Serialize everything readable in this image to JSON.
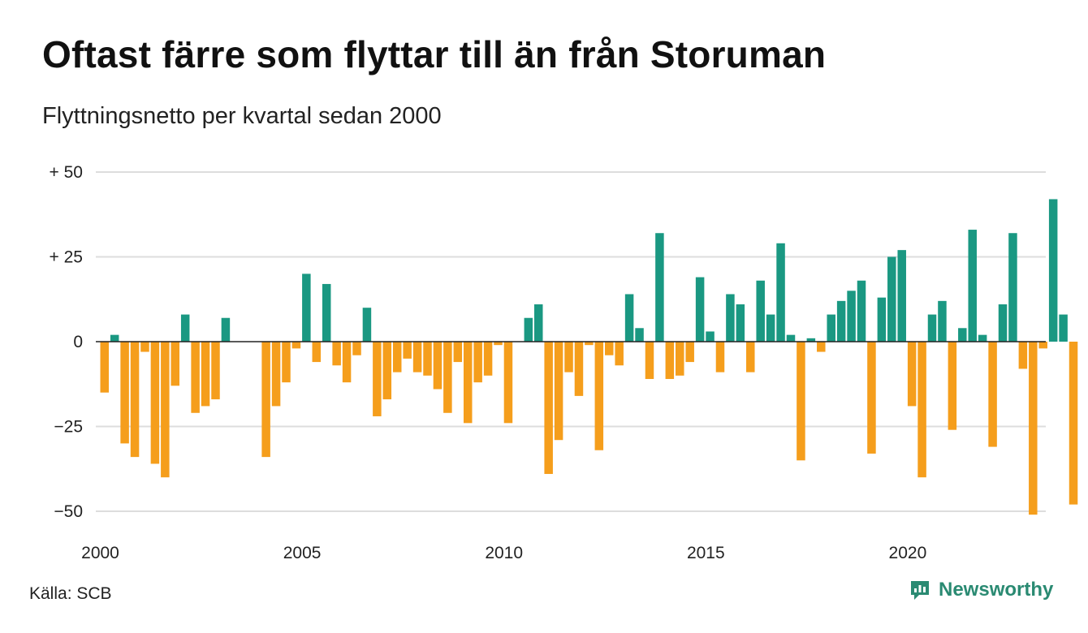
{
  "title": "Oftast färre som flyttar till än från Storuman",
  "subtitle": "Flyttningsnetto per kvartal sedan 2000",
  "source": "Källa: SCB",
  "brand": {
    "name": "Newsworthy",
    "icon": "newsworthy-logo-icon",
    "color": "#2a8a72"
  },
  "colors": {
    "positive": "#1a9882",
    "negative": "#f59e1c",
    "grid": "#dddddd"
  },
  "chart_data": {
    "type": "bar",
    "grid": true,
    "ylim": [
      -55,
      50
    ],
    "y_ticks": [
      {
        "value": 50,
        "label": "+ 50"
      },
      {
        "value": 25,
        "label": "+ 25"
      },
      {
        "value": 0,
        "label": "0"
      },
      {
        "value": -25,
        "label": "−25"
      },
      {
        "value": -50,
        "label": "−50"
      }
    ],
    "x_ticks": [
      {
        "value": 2000,
        "label": "2000"
      },
      {
        "value": 2005,
        "label": "2005"
      },
      {
        "value": 2010,
        "label": "2010"
      },
      {
        "value": 2015,
        "label": "2015"
      },
      {
        "value": 2020,
        "label": "2020"
      }
    ],
    "start": {
      "year": 2000,
      "quarter": 1
    },
    "values": [
      -15,
      2,
      -30,
      -34,
      -3,
      -36,
      -40,
      -13,
      8,
      -21,
      -19,
      -17,
      7,
      0,
      0,
      0,
      -34,
      -19,
      -12,
      -2,
      20,
      -6,
      17,
      -7,
      -12,
      -4,
      10,
      -22,
      -17,
      -9,
      -5,
      -9,
      -10,
      -14,
      -21,
      -6,
      -24,
      -12,
      -10,
      -1,
      -24,
      0,
      7,
      11,
      -39,
      -29,
      -9,
      -16,
      -1,
      -32,
      -4,
      -7,
      14,
      4,
      -11,
      32,
      -11,
      -10,
      -6,
      19,
      3,
      -9,
      14,
      11,
      -9,
      18,
      8,
      29,
      2,
      -35,
      1,
      -3,
      8,
      12,
      15,
      18,
      -33,
      13,
      25,
      27,
      -19,
      -40,
      8,
      12,
      -26,
      4,
      33,
      2,
      -31,
      11,
      32,
      -8,
      -51,
      -2,
      42,
      8,
      -48
    ]
  }
}
